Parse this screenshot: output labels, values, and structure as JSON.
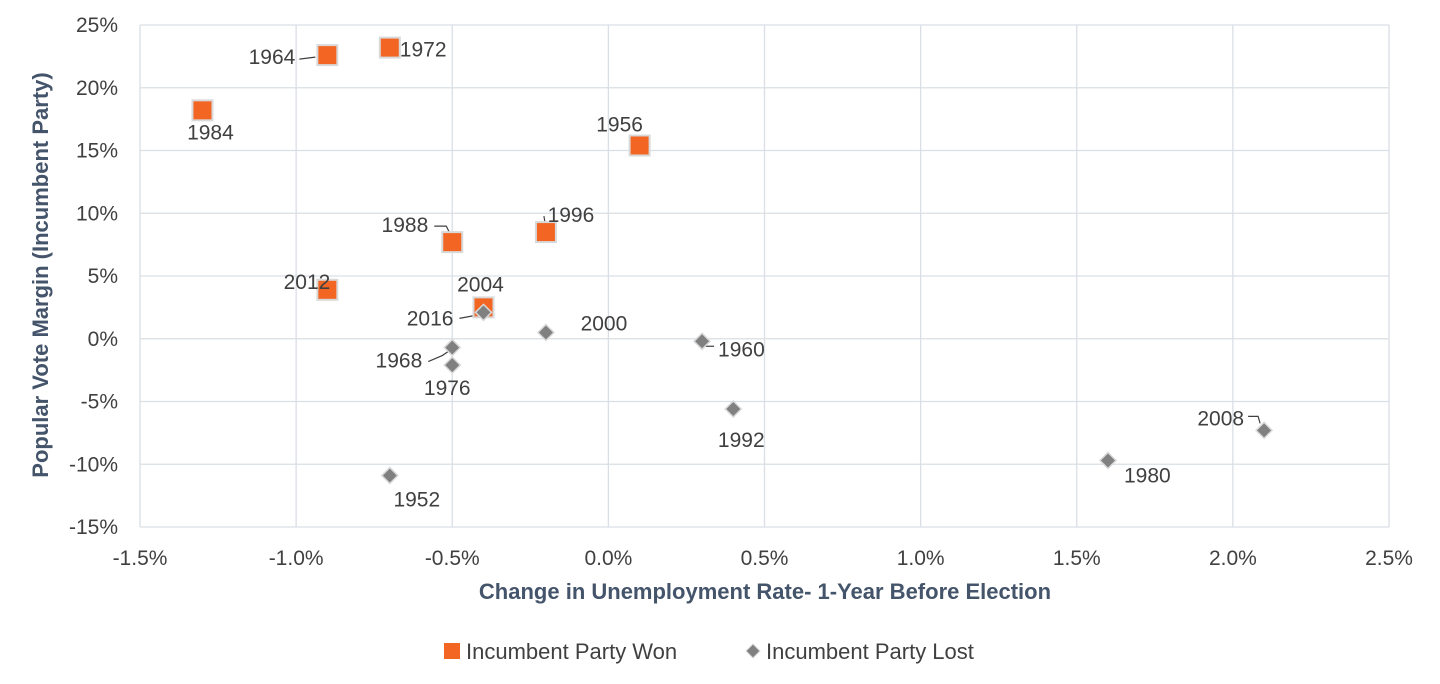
{
  "chart_data": {
    "type": "scatter",
    "title": "",
    "xlabel": "Change in Unemployment  Rate- 1-Year Before Election",
    "ylabel": "Popular Vote Margin (Incumbent  Party)",
    "xlim": [
      -1.5,
      2.5
    ],
    "ylim": [
      -15,
      25
    ],
    "x_unit": "%",
    "y_unit": "%",
    "x_ticks": [
      -1.5,
      -1.0,
      -0.5,
      0.0,
      0.5,
      1.0,
      1.5,
      2.0,
      2.5
    ],
    "x_tick_labels": [
      "-1.5%",
      "-1.0%",
      "-0.5%",
      "0.0%",
      "0.5%",
      "1.0%",
      "1.5%",
      "2.0%",
      "2.5%"
    ],
    "y_ticks": [
      -15,
      -10,
      -5,
      0,
      5,
      10,
      15,
      20,
      25
    ],
    "y_tick_labels": [
      "-15%",
      "-10%",
      "-5%",
      "0%",
      "5%",
      "10%",
      "15%",
      "20%",
      "25%"
    ],
    "grid": true,
    "legend_position": "bottom",
    "series": [
      {
        "name": "Incumbent Party Won",
        "marker": "square",
        "color": "#f26522",
        "points": [
          {
            "label": "1964",
            "x": -0.9,
            "y": 22.6
          },
          {
            "label": "1972",
            "x": -0.7,
            "y": 23.2
          },
          {
            "label": "1984",
            "x": -1.3,
            "y": 18.2
          },
          {
            "label": "1956",
            "x": 0.1,
            "y": 15.4
          },
          {
            "label": "1988",
            "x": -0.5,
            "y": 7.7
          },
          {
            "label": "1996",
            "x": -0.2,
            "y": 8.5
          },
          {
            "label": "2012",
            "x": -0.9,
            "y": 3.9
          },
          {
            "label": "2004",
            "x": -0.4,
            "y": 2.5
          }
        ]
      },
      {
        "name": "Incumbent Party Lost",
        "marker": "diamond",
        "color": "#808080",
        "points": [
          {
            "label": "2016",
            "x": -0.4,
            "y": 2.1
          },
          {
            "label": "2000",
            "x": -0.2,
            "y": 0.5
          },
          {
            "label": "1960",
            "x": 0.3,
            "y": -0.2
          },
          {
            "label": "1968",
            "x": -0.5,
            "y": -0.7
          },
          {
            "label": "1976",
            "x": -0.5,
            "y": -2.1
          },
          {
            "label": "1992",
            "x": 0.4,
            "y": -5.6
          },
          {
            "label": "2008",
            "x": 2.1,
            "y": -7.3
          },
          {
            "label": "1980",
            "x": 1.6,
            "y": -9.7
          },
          {
            "label": "1952",
            "x": -0.7,
            "y": -10.9
          }
        ]
      }
    ]
  },
  "colors": {
    "won": "#f26522",
    "won_stroke": "#d9d9d9",
    "lost": "#808080",
    "lost_stroke": "#d9d9d9",
    "grid": "#d9dfe5",
    "axis_title": "#44546a",
    "text": "#404040"
  }
}
